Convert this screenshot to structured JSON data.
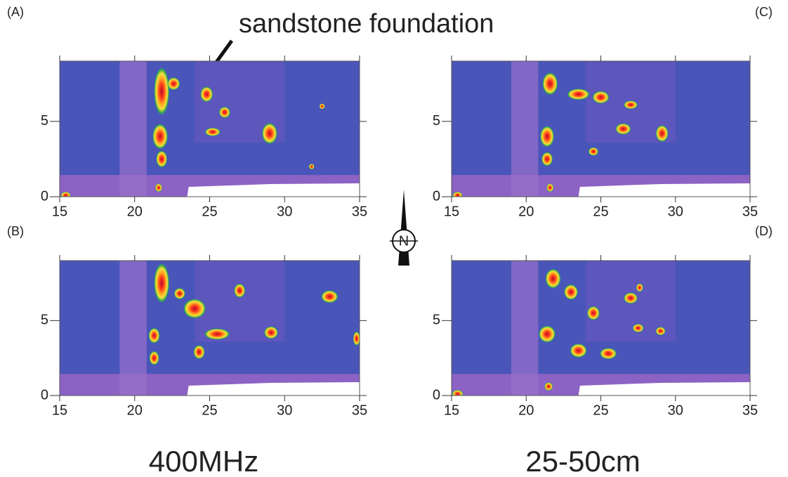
{
  "annotation": "sandstone foundation",
  "captions": [
    "400MHz",
    "25-50cm"
  ],
  "compass": "N",
  "chart_data": [
    {
      "type": "heatmap",
      "title": "(A)",
      "xlim": [
        15,
        35
      ],
      "ylim": [
        0,
        9
      ],
      "xticks": [
        15,
        20,
        25,
        30,
        35
      ],
      "yticks": [
        0,
        5
      ]
    },
    {
      "type": "heatmap",
      "title": "(C)",
      "xlim": [
        15,
        35
      ],
      "ylim": [
        0,
        9
      ],
      "xticks": [
        15,
        20,
        25,
        30,
        35
      ],
      "yticks": [
        0,
        5
      ]
    },
    {
      "type": "heatmap",
      "title": "(B)",
      "xlim": [
        15,
        35
      ],
      "ylim": [
        0,
        9
      ],
      "xticks": [
        15,
        20,
        25,
        30,
        35
      ],
      "yticks": [
        0,
        5
      ]
    },
    {
      "type": "heatmap",
      "title": "(D)",
      "xlim": [
        15,
        35
      ],
      "ylim": [
        0,
        9
      ],
      "xticks": [
        15,
        20,
        25,
        30,
        35
      ],
      "yticks": [
        0,
        5
      ]
    }
  ]
}
